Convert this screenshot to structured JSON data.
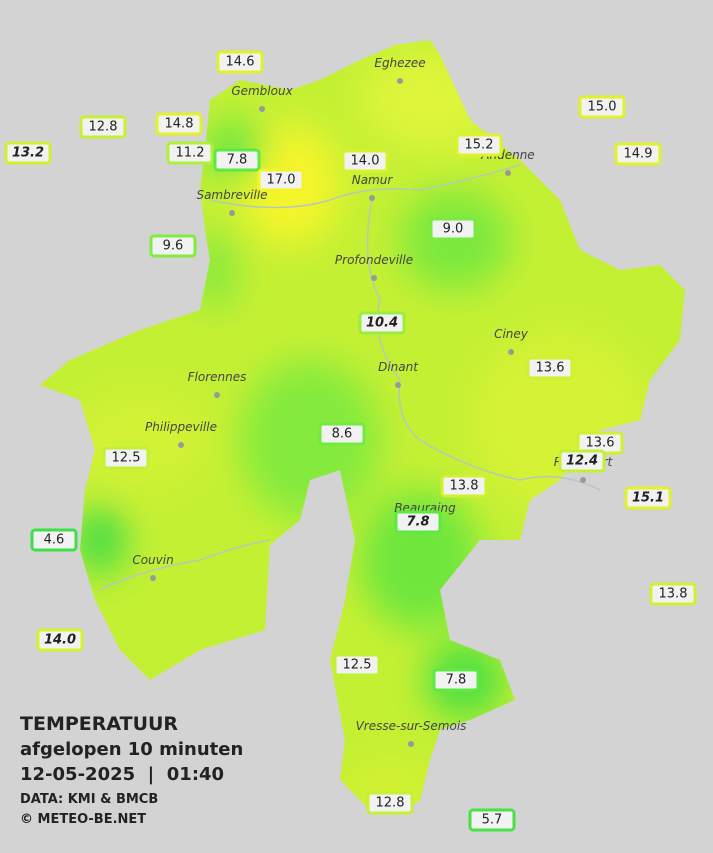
{
  "header": {
    "title": "TEMPERATUUR",
    "subtitle": "afgelopen 10 minuten",
    "datetime": "12-05-2025  |  01:40",
    "source": "DATA: KMI & BMCB",
    "copyright": "© METEO-BE.NET"
  },
  "cities": [
    "Eghezee",
    "Gembloux",
    "Andenne",
    "Namur",
    "Sambreville",
    "Profondeville",
    "Ciney",
    "Dinant",
    "Florennes",
    "Philippeville",
    "Rochefort",
    "Beauraing",
    "Couvin",
    "Vresse-sur-Semois"
  ],
  "stations": [
    {
      "label": "14.6",
      "italic": false,
      "color": "#dff22a"
    },
    {
      "label": "12.8",
      "italic": false,
      "color": "#c6f034"
    },
    {
      "label": "14.8",
      "italic": false,
      "color": "#dff22a"
    },
    {
      "label": "13.2",
      "italic": true,
      "color": "#cdf032"
    },
    {
      "label": "11.2",
      "italic": false,
      "color": "#aef03a"
    },
    {
      "label": "7.8",
      "italic": false,
      "color": "#5ee844"
    },
    {
      "label": "17.0",
      "italic": false,
      "color": "#f4f424"
    },
    {
      "label": "14.0",
      "italic": false,
      "color": "#d6f22e"
    },
    {
      "label": "15.2",
      "italic": false,
      "color": "#e2f22a"
    },
    {
      "label": "15.0",
      "italic": false,
      "color": "#e2f22a"
    },
    {
      "label": "14.9",
      "italic": false,
      "color": "#e2f22a"
    },
    {
      "label": "9.6",
      "italic": false,
      "color": "#80ec40"
    },
    {
      "label": "9.0",
      "italic": false,
      "color": "#78ea42"
    },
    {
      "label": "10.4",
      "italic": true,
      "color": "#98ee3c"
    },
    {
      "label": "13.6",
      "italic": false,
      "color": "#d0f030"
    },
    {
      "label": "12.5",
      "italic": false,
      "color": "#c2f034"
    },
    {
      "label": "8.6",
      "italic": false,
      "color": "#72ea42"
    },
    {
      "label": "13.6",
      "italic": false,
      "color": "#d0f030"
    },
    {
      "label": "12.4",
      "italic": true,
      "color": "#c2f034"
    },
    {
      "label": "15.1",
      "italic": true,
      "color": "#e2f22a"
    },
    {
      "label": "13.8",
      "italic": false,
      "color": "#d2f030"
    },
    {
      "label": "7.8",
      "italic": true,
      "color": "#5ee844"
    },
    {
      "label": "4.6",
      "italic": false,
      "color": "#3ee048"
    },
    {
      "label": "13.8",
      "italic": false,
      "color": "#d2f030"
    },
    {
      "label": "14.0",
      "italic": true,
      "color": "#d6f22e"
    },
    {
      "label": "12.5",
      "italic": false,
      "color": "#c2f034"
    },
    {
      "label": "7.8",
      "italic": false,
      "color": "#5ee844"
    },
    {
      "label": "12.8",
      "italic": false,
      "color": "#c6f034"
    },
    {
      "label": "5.7",
      "italic": false,
      "color": "#48e246"
    }
  ]
}
